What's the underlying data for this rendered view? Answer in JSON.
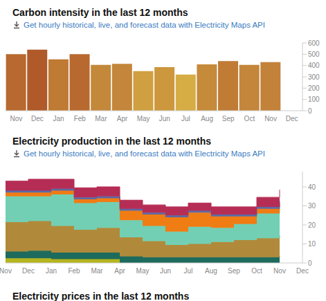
{
  "chart_data": [
    {
      "type": "bar",
      "title": "Carbon intensity in the last 12 months",
      "subtitle": "Get hourly historical, live, and forecast data with Electricity Maps API",
      "categories": [
        "Nov",
        "Dec",
        "Jan",
        "Feb",
        "Mar",
        "Apr",
        "May",
        "Jun",
        "Jul",
        "Aug",
        "Sep",
        "Oct",
        "Nov",
        "Dec"
      ],
      "values": [
        500,
        540,
        455,
        500,
        405,
        415,
        350,
        385,
        320,
        410,
        440,
        405,
        430,
        null
      ],
      "colors": [
        "#b8692f",
        "#b05a2a",
        "#bf7a33",
        "#b8692f",
        "#c4883a",
        "#c4863a",
        "#d0a040",
        "#cc973d",
        "#d6ad45",
        "#c68a3b",
        "#c07b35",
        "#c4863a",
        "#c2823a",
        "#c2823a"
      ],
      "ylim": [
        0,
        600
      ],
      "yticks": [
        0,
        100,
        200,
        300,
        400,
        500,
        600
      ],
      "grid": false
    },
    {
      "type": "area",
      "stacked": true,
      "line_style": "step",
      "title": "Electricity production in the last 12 months",
      "subtitle": "Get hourly historical, live, and forecast data with Electricity Maps API",
      "categories": [
        "Nov",
        "Dec",
        "Jan",
        "Feb",
        "Mar",
        "Apr",
        "May",
        "Jun",
        "Jul",
        "Aug",
        "Sep",
        "Oct",
        "Nov",
        "Dec"
      ],
      "series": [
        {
          "color": "#b5b51e",
          "values": [
            2.5,
            2.5,
            2,
            2,
            2,
            0,
            0,
            0,
            0,
            0,
            0,
            0,
            0,
            null
          ]
        },
        {
          "color": "#1d6b5c",
          "values": [
            3.5,
            4,
            3.5,
            3.5,
            3.5,
            3.5,
            3,
            3,
            3,
            3,
            3,
            3,
            3.5,
            null
          ]
        },
        {
          "color": "#b08a3a",
          "values": [
            15.5,
            15.5,
            14,
            12,
            13,
            10,
            8.5,
            6.5,
            7,
            8,
            9,
            10,
            11,
            null
          ]
        },
        {
          "color": "#72cfb4",
          "values": [
            13.5,
            13,
            16.5,
            14,
            13.5,
            9,
            8,
            7,
            9,
            7.5,
            8.5,
            13,
            16,
            null
          ]
        },
        {
          "color": "#f07c14",
          "values": [
            2,
            2,
            2,
            2,
            2,
            5,
            6,
            7.5,
            7.5,
            6,
            4,
            2.5,
            1,
            null
          ]
        },
        {
          "color": "#5a6aa6",
          "values": [
            1,
            1,
            1,
            1,
            1,
            1,
            1,
            1,
            1,
            1,
            1,
            1,
            1,
            null
          ]
        },
        {
          "color": "#b52d55",
          "values": [
            5,
            6,
            5,
            5,
            5,
            4.5,
            4,
            4.5,
            4,
            4,
            4,
            5,
            6,
            null
          ]
        }
      ],
      "ylim": [
        0,
        48
      ],
      "yticks": [
        0,
        10,
        20,
        30,
        40
      ],
      "grid": false
    }
  ],
  "section_title": "Electricity prices in the last 12 months"
}
